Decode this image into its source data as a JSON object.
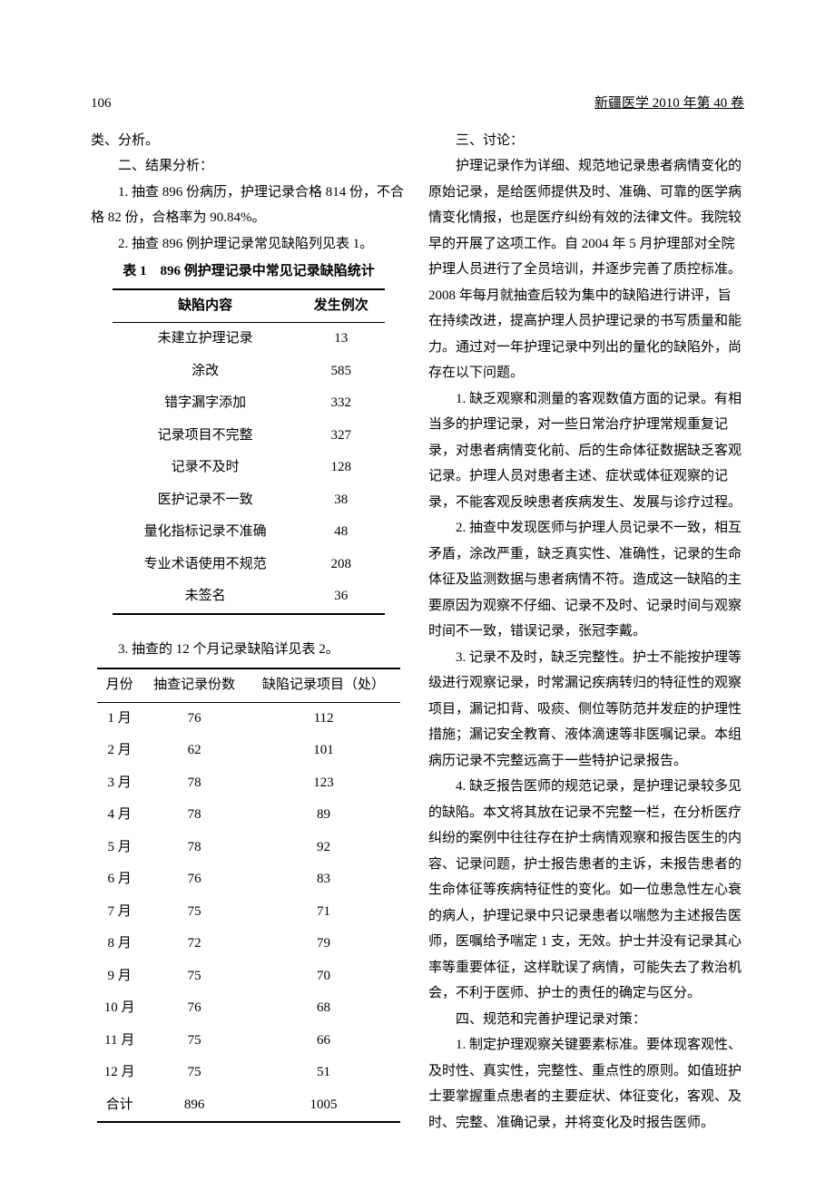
{
  "header": {
    "page_no": "106",
    "journal": "新疆医学 2010 年第 40 卷"
  },
  "left": {
    "pre_lines": [
      "类、分析。",
      "二、结果分析：",
      "1. 抽查 896 份病历，护理记录合格 814 份，不合格 82 份，合格率为 90.84%。",
      "2. 抽查 896 例护理记录常见缺陷列见表 1。"
    ],
    "table1": {
      "caption": "表 1　896 例护理记录中常见记录缺陷统计",
      "columns": [
        "缺陷内容",
        "发生例次"
      ],
      "rows": [
        [
          "未建立护理记录",
          "13"
        ],
        [
          "涂改",
          "585"
        ],
        [
          "错字漏字添加",
          "332"
        ],
        [
          "记录项目不完整",
          "327"
        ],
        [
          "记录不及时",
          "128"
        ],
        [
          "医护记录不一致",
          "38"
        ],
        [
          "量化指标记录不准确",
          "48"
        ],
        [
          "专业术语使用不规范",
          "208"
        ],
        [
          "未签名",
          "36"
        ]
      ]
    },
    "tbl2_note": "3. 抽查的 12 个月记录缺陷详见表 2。",
    "table2": {
      "columns": [
        "月份",
        "抽查记录份数",
        "缺陷记录项目（处）"
      ],
      "rows": [
        [
          "1 月",
          "76",
          "112"
        ],
        [
          "2 月",
          "62",
          "101"
        ],
        [
          "3 月",
          "78",
          "123"
        ],
        [
          "4 月",
          "78",
          "89"
        ],
        [
          "5 月",
          "78",
          "92"
        ],
        [
          "6 月",
          "76",
          "83"
        ],
        [
          "7 月",
          "75",
          "71"
        ],
        [
          "8 月",
          "72",
          "79"
        ],
        [
          "9 月",
          "75",
          "70"
        ],
        [
          "10 月",
          "76",
          "68"
        ],
        [
          "11 月",
          "75",
          "66"
        ],
        [
          "12 月",
          "75",
          "51"
        ],
        [
          "合计",
          "896",
          "1005"
        ]
      ]
    }
  },
  "right": {
    "paras": [
      "三、讨论：",
      "护理记录作为详细、规范地记录患者病情变化的原始记录，是给医师提供及时、准确、可靠的医学病情变化情报，也是医疗纠纷有效的法律文件。我院较早的开展了这项工作。自 2004 年 5 月护理部对全院护理人员进行了全员培训，并逐步完善了质控标准。2008 年每月就抽查后较为集中的缺陷进行讲评，旨在持续改进，提高护理人员护理记录的书写质量和能力。通过对一年护理记录中列出的量化的缺陷外，尚存在以下问题。",
      "1. 缺乏观察和测量的客观数值方面的记录。有相当多的护理记录，对一些日常治疗护理常规重复记录，对患者病情变化前、后的生命体征数据缺乏客观记录。护理人员对患者主述、症状或体征观察的记录，不能客观反映患者疾病发生、发展与诊疗过程。",
      "2. 抽查中发现医师与护理人员记录不一致，相互矛盾，涂改严重，缺乏真实性、准确性，记录的生命体征及监测数据与患者病情不符。造成这一缺陷的主要原因为观察不仔细、记录不及时、记录时间与观察时间不一致，错误记录，张冠李戴。",
      "3. 记录不及时，缺乏完整性。护士不能按护理等级进行观察记录，时常漏记疾病转归的特征性的观察项目，漏记扣背、吸痰、侧位等防范并发症的护理性措施；漏记安全教育、液体滴速等非医嘱记录。本组病历记录不完整远高于一些特护记录报告。",
      "4. 缺乏报告医师的规范记录，是护理记录较多见的缺陷。本文将其放在记录不完整一栏，在分析医疗纠纷的案例中往往存在护士病情观察和报告医生的内容、记录问题，护士报告患者的主诉，未报告患者的生命体征等疾病特征性的变化。如一位患急性左心衰的病人，护理记录中只记录患者以喘憋为主述报告医师，医嘱给予喘定 1 支，无效。护士并没有记录其心率等重要体征，这样耽误了病情，可能失去了救治机会，不利于医师、护士的责任的确定与区分。",
      "四、规范和完善护理记录对策：",
      "1. 制定护理观察关键要素标准。要体现客观性、及时性、真实性，完整性、重点性的原则。如值班护士要掌握重点患者的主要症状、体征变化，客观、及时、完整、准确记录，并将变化及时报告医师。"
    ]
  }
}
